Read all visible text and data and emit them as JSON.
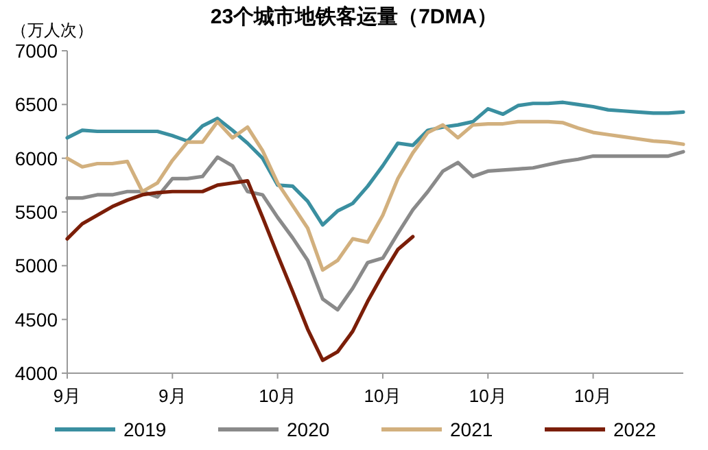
{
  "chart_data": {
    "type": "line",
    "title": "23个城市地铁客运量（7DMA）",
    "ylabel": "（万人次）",
    "categories": [
      "9月",
      null,
      null,
      null,
      null,
      null,
      null,
      "9月",
      null,
      null,
      null,
      null,
      null,
      null,
      "10月",
      null,
      null,
      null,
      null,
      null,
      null,
      "10月",
      null,
      null,
      null,
      null,
      null,
      null,
      "10月",
      null,
      null,
      null,
      null,
      null,
      null,
      "10月",
      null,
      null,
      null,
      null,
      null,
      null
    ],
    "ylim": [
      4000,
      7000
    ],
    "yticks": [
      4000,
      4500,
      5000,
      5500,
      6000,
      6500,
      7000
    ],
    "grid": false,
    "legend": "bottom",
    "marker": "none",
    "line_style": "solid",
    "series": [
      {
        "name": "2019",
        "color": "#3a8fa0",
        "values": [
          6190,
          6260,
          6250,
          6250,
          6250,
          6250,
          6250,
          6210,
          6160,
          6300,
          6370,
          6260,
          6140,
          6000,
          5750,
          5740,
          5600,
          5380,
          5510,
          5580,
          5740,
          5930,
          6140,
          6120,
          6260,
          6290,
          6310,
          6340,
          6460,
          6410,
          6490,
          6510,
          6510,
          6520,
          6500,
          6480,
          6450,
          6440,
          6430,
          6420,
          6420,
          6430
        ]
      },
      {
        "name": "2020",
        "color": "#8a8a8a",
        "values": [
          5630,
          5630,
          5660,
          5660,
          5690,
          5690,
          5640,
          5810,
          5810,
          5830,
          6010,
          5930,
          5690,
          5660,
          5450,
          5260,
          5050,
          4690,
          4590,
          4790,
          5030,
          5070,
          5300,
          5520,
          5690,
          5880,
          5960,
          5830,
          5880,
          5890,
          5900,
          5910,
          5940,
          5970,
          5990,
          6020,
          6020,
          6020,
          6020,
          6020,
          6020,
          6060
        ]
      },
      {
        "name": "2021",
        "color": "#d2b07e",
        "values": [
          6000,
          5920,
          5950,
          5950,
          5970,
          5690,
          5770,
          5980,
          6150,
          6150,
          6340,
          6190,
          6290,
          6070,
          5770,
          5560,
          5350,
          4960,
          5050,
          5250,
          5220,
          5470,
          5810,
          6050,
          6240,
          6310,
          6190,
          6310,
          6320,
          6320,
          6340,
          6340,
          6340,
          6330,
          6280,
          6240,
          6220,
          6200,
          6180,
          6160,
          6150,
          6130
        ]
      },
      {
        "name": "2022",
        "color": "#7b1e08",
        "values": [
          5250,
          5390,
          5470,
          5550,
          5610,
          5660,
          5680,
          5690,
          5690,
          5690,
          5750,
          5770,
          5790,
          5450,
          5100,
          4760,
          4410,
          4120,
          4200,
          4390,
          4670,
          4920,
          5150,
          5270,
          null,
          null,
          null,
          null,
          null,
          null,
          null,
          null,
          null,
          null,
          null,
          null,
          null,
          null,
          null,
          null,
          null,
          null
        ]
      }
    ]
  }
}
